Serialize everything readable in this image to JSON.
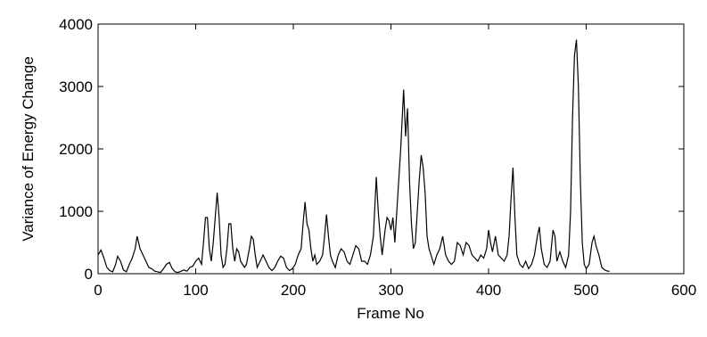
{
  "chart_data": {
    "type": "line",
    "xlabel": "Frame No",
    "ylabel": "Variance of Energy Change",
    "xlim": [
      0,
      600
    ],
    "xticks": [
      0,
      100,
      200,
      300,
      400,
      500,
      600
    ],
    "ylim": [
      0,
      4000
    ],
    "yticks": [
      0,
      1000,
      2000,
      3000,
      4000
    ],
    "color": "#000000",
    "x": [
      0,
      3,
      6,
      9,
      12,
      15,
      18,
      20,
      23,
      26,
      29,
      32,
      35,
      38,
      40,
      43,
      46,
      49,
      52,
      55,
      58,
      61,
      64,
      67,
      70,
      73,
      76,
      79,
      82,
      85,
      88,
      91,
      94,
      97,
      100,
      103,
      106,
      108,
      110,
      112,
      114,
      116,
      118,
      120,
      122,
      124,
      126,
      128,
      130,
      132,
      134,
      136,
      138,
      140,
      142,
      144,
      146,
      148,
      150,
      152,
      155,
      157,
      159,
      161,
      163,
      166,
      169,
      172,
      175,
      178,
      181,
      184,
      187,
      190,
      193,
      196,
      199,
      202,
      205,
      208,
      210,
      212,
      214,
      216,
      218,
      220,
      222,
      224,
      227,
      230,
      232,
      234,
      236,
      238,
      240,
      243,
      246,
      249,
      252,
      255,
      258,
      261,
      264,
      267,
      270,
      273,
      276,
      279,
      282,
      285,
      287,
      289,
      291,
      294,
      296,
      298,
      300,
      302,
      304,
      306,
      308,
      310,
      313,
      315,
      317,
      319,
      321,
      323,
      325,
      327,
      329,
      331,
      333,
      335,
      337,
      339,
      341,
      344,
      347,
      350,
      353,
      356,
      359,
      362,
      365,
      368,
      371,
      374,
      377,
      380,
      383,
      386,
      389,
      392,
      395,
      398,
      400,
      402,
      404,
      407,
      410,
      413,
      416,
      419,
      421,
      423,
      425,
      427,
      429,
      432,
      435,
      438,
      441,
      444,
      447,
      450,
      452,
      454,
      457,
      460,
      463,
      466,
      468,
      470,
      473,
      476,
      479,
      482,
      484,
      486,
      488,
      490,
      492,
      494,
      496,
      498,
      500,
      503,
      506,
      508,
      510,
      513,
      516,
      519,
      522,
      524
    ],
    "values": [
      300,
      380,
      250,
      100,
      50,
      30,
      150,
      280,
      200,
      60,
      30,
      150,
      250,
      400,
      600,
      400,
      300,
      200,
      100,
      80,
      40,
      30,
      20,
      80,
      150,
      180,
      80,
      30,
      20,
      40,
      60,
      40,
      100,
      120,
      200,
      250,
      150,
      500,
      900,
      900,
      400,
      200,
      500,
      900,
      1300,
      900,
      300,
      100,
      150,
      400,
      800,
      800,
      400,
      200,
      400,
      350,
      200,
      150,
      100,
      150,
      400,
      600,
      550,
      300,
      100,
      200,
      300,
      200,
      100,
      50,
      100,
      200,
      280,
      250,
      100,
      50,
      80,
      150,
      300,
      400,
      800,
      1150,
      800,
      700,
      400,
      200,
      300,
      150,
      200,
      300,
      600,
      950,
      600,
      300,
      200,
      100,
      300,
      400,
      350,
      200,
      150,
      300,
      450,
      400,
      200,
      200,
      150,
      300,
      600,
      1550,
      1000,
      600,
      300,
      700,
      900,
      850,
      700,
      900,
      500,
      1000,
      1500,
      2000,
      2950,
      2200,
      2650,
      1500,
      800,
      400,
      500,
      1000,
      1500,
      1900,
      1700,
      1300,
      600,
      400,
      300,
      150,
      300,
      400,
      600,
      300,
      200,
      150,
      200,
      500,
      450,
      300,
      500,
      450,
      300,
      250,
      200,
      300,
      250,
      400,
      700,
      500,
      350,
      600,
      300,
      250,
      200,
      300,
      600,
      1200,
      1700,
      900,
      300,
      150,
      100,
      200,
      80,
      150,
      300,
      600,
      750,
      400,
      150,
      100,
      200,
      700,
      600,
      200,
      350,
      200,
      100,
      300,
      1000,
      2500,
      3500,
      3750,
      3000,
      1500,
      500,
      150,
      80,
      150,
      500,
      600,
      450,
      300,
      100,
      60,
      40,
      40
    ]
  }
}
